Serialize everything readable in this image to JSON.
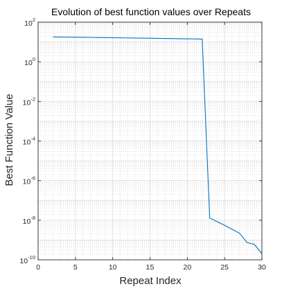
{
  "chart_data": {
    "type": "line",
    "title": "Evolution of best function values over Repeats",
    "xlabel": "Repeat Index",
    "ylabel": "Best Function Value",
    "x_scale": "linear",
    "y_scale": "log",
    "xlim": [
      0,
      30
    ],
    "ylim": [
      1e-10,
      100
    ],
    "x_ticks": [
      0,
      5,
      10,
      15,
      20,
      25,
      30
    ],
    "y_ticks": [
      {
        "base": "10",
        "exp": "-10",
        "value": 1e-10
      },
      {
        "base": "10",
        "exp": "-8",
        "value": 1e-08
      },
      {
        "base": "10",
        "exp": "-6",
        "value": 1e-06
      },
      {
        "base": "10",
        "exp": "-4",
        "value": 0.0001
      },
      {
        "base": "10",
        "exp": "-2",
        "value": 0.01
      },
      {
        "base": "10",
        "exp": "0",
        "value": 1
      },
      {
        "base": "10",
        "exp": "2",
        "value": 100
      }
    ],
    "grid": "major and minor",
    "series": [
      {
        "color": "#0072bd",
        "x": [
          2,
          3,
          4,
          5,
          6,
          7,
          8,
          9,
          10,
          11,
          12,
          13,
          14,
          15,
          16,
          17,
          18,
          19,
          20,
          21,
          22,
          23,
          24,
          25,
          26,
          27,
          28,
          29,
          30
        ],
        "y": [
          18,
          17.8,
          17.6,
          17.4,
          17.2,
          17,
          16.8,
          16.6,
          16.4,
          16.2,
          16,
          15.8,
          15.6,
          15.4,
          15.2,
          15,
          14.8,
          14.6,
          14.4,
          14.2,
          14,
          1.3e-08,
          8.5e-09,
          5.5e-09,
          3.5e-09,
          2.2e-09,
          7.5e-10,
          6e-10,
          2e-10
        ]
      }
    ]
  }
}
